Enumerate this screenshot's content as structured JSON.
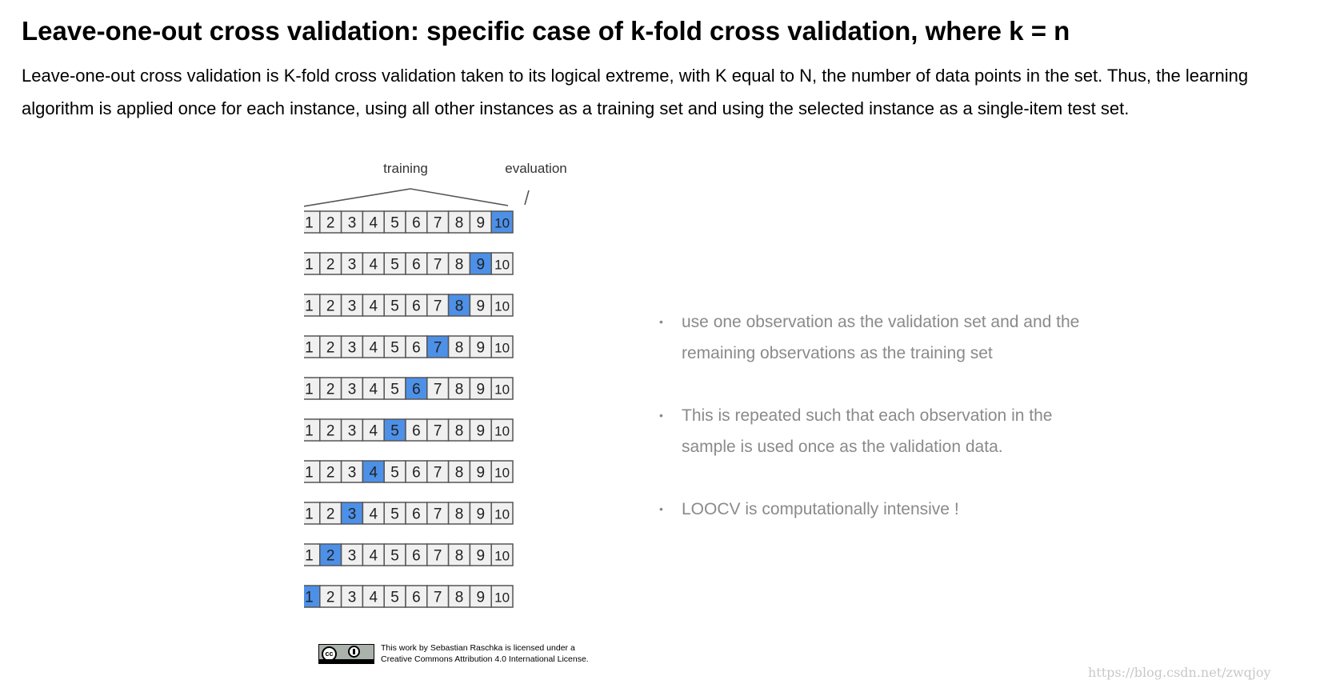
{
  "title": "Leave-one-out cross validation: specific case of k-fold cross validation, where k = n",
  "intro": {
    "line1": "Leave-one-out cross validation is K-fold cross validation taken to its logical extreme, with K equal to N, the number of data points in the set. Thus, the learning",
    "line2": "algorithm is applied once for each instance, using all other instances as a training set and using the selected instance as a single-item test set."
  },
  "diagram": {
    "training_label": "training",
    "evaluation_label": "evaluation",
    "cell_labels": [
      "1",
      "2",
      "3",
      "4",
      "5",
      "6",
      "7",
      "8",
      "9",
      "10"
    ],
    "highlighted_fold_per_row": [
      10,
      9,
      8,
      7,
      6,
      5,
      4,
      3,
      2,
      1
    ],
    "colors": {
      "highlight": "#4d90e8",
      "cell_fill": "#f0f0f0",
      "cell_border": "#555555",
      "label": "#333333"
    }
  },
  "bullets": [
    {
      "dot": "•",
      "line1": "use one observation as the validation set and and the",
      "line2": "remaining observations as the training set"
    },
    {
      "dot": "•",
      "line1": "This is repeated such that each observation in the",
      "line2": "sample is used once as the validation data."
    },
    {
      "dot": "•",
      "line1": "LOOCV is computationally intensive !"
    }
  ],
  "license": {
    "badge_cc": "cc",
    "badge_by": "BY",
    "line1": "This work by Sebastian Raschka is licensed under a",
    "line2": "Creative Commons Attribution 4.0 International License."
  },
  "watermark": "https://blog.csdn.net/zwqjoy"
}
